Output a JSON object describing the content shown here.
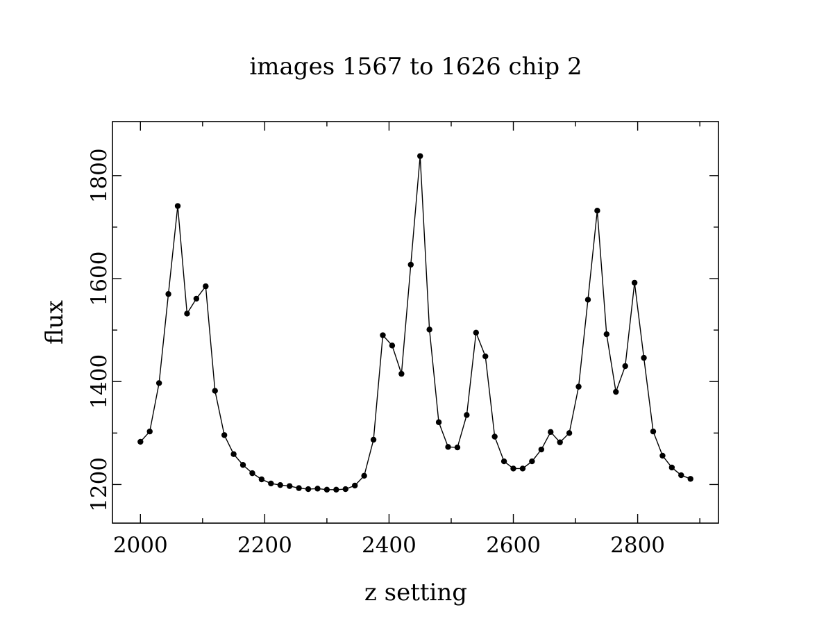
{
  "chart_data": {
    "type": "line",
    "title": "images 1567 to 1626 chip 2",
    "xlabel": "z setting",
    "ylabel": "flux",
    "xlim": [
      1955,
      2930
    ],
    "ylim": [
      1125,
      1905
    ],
    "x_major_ticks": [
      2000,
      2200,
      2400,
      2600,
      2800
    ],
    "x_major_tick_labels": [
      "2000",
      "2200",
      "2400",
      "2600",
      "2800"
    ],
    "x_minor_ticks": [
      2100,
      2300,
      2500,
      2700,
      2900
    ],
    "y_major_ticks": [
      1200,
      1400,
      1600,
      1800
    ],
    "y_major_tick_labels": [
      "1200",
      "1400",
      "1600",
      "1800"
    ],
    "y_minor_ticks": [
      1300,
      1500,
      1700
    ],
    "grid": false,
    "legend": false,
    "series": [
      {
        "x": [
          2000,
          2015,
          2030,
          2045,
          2060,
          2075,
          2090,
          2105,
          2120,
          2135,
          2150,
          2165,
          2180,
          2195,
          2210,
          2225,
          2240,
          2255,
          2270,
          2285,
          2300,
          2315,
          2330,
          2345,
          2360,
          2375,
          2390,
          2405,
          2420,
          2435,
          2450,
          2465,
          2480,
          2495,
          2510,
          2525,
          2540,
          2555,
          2570,
          2585,
          2600,
          2615,
          2630,
          2645,
          2660,
          2675,
          2690,
          2705,
          2720,
          2735,
          2750,
          2765,
          2780,
          2795,
          2810,
          2825,
          2840,
          2855,
          2870,
          2885
        ],
        "y": [
          1283,
          1303,
          1397,
          1570,
          1741,
          1532,
          1561,
          1585,
          1382,
          1296,
          1259,
          1238,
          1222,
          1210,
          1202,
          1199,
          1197,
          1193,
          1191,
          1192,
          1190,
          1190,
          1191,
          1198,
          1217,
          1287,
          1490,
          1470,
          1415,
          1627,
          1838,
          1501,
          1321,
          1273,
          1272,
          1335,
          1495,
          1449,
          1293,
          1245,
          1231,
          1231,
          1245,
          1268,
          1302,
          1282,
          1300,
          1390,
          1559,
          1732,
          1492,
          1380,
          1430,
          1592,
          1446,
          1303,
          1256,
          1233,
          1218,
          1211
        ]
      }
    ]
  },
  "colors": {
    "background": "#ffffff",
    "foreground": "#000000"
  }
}
